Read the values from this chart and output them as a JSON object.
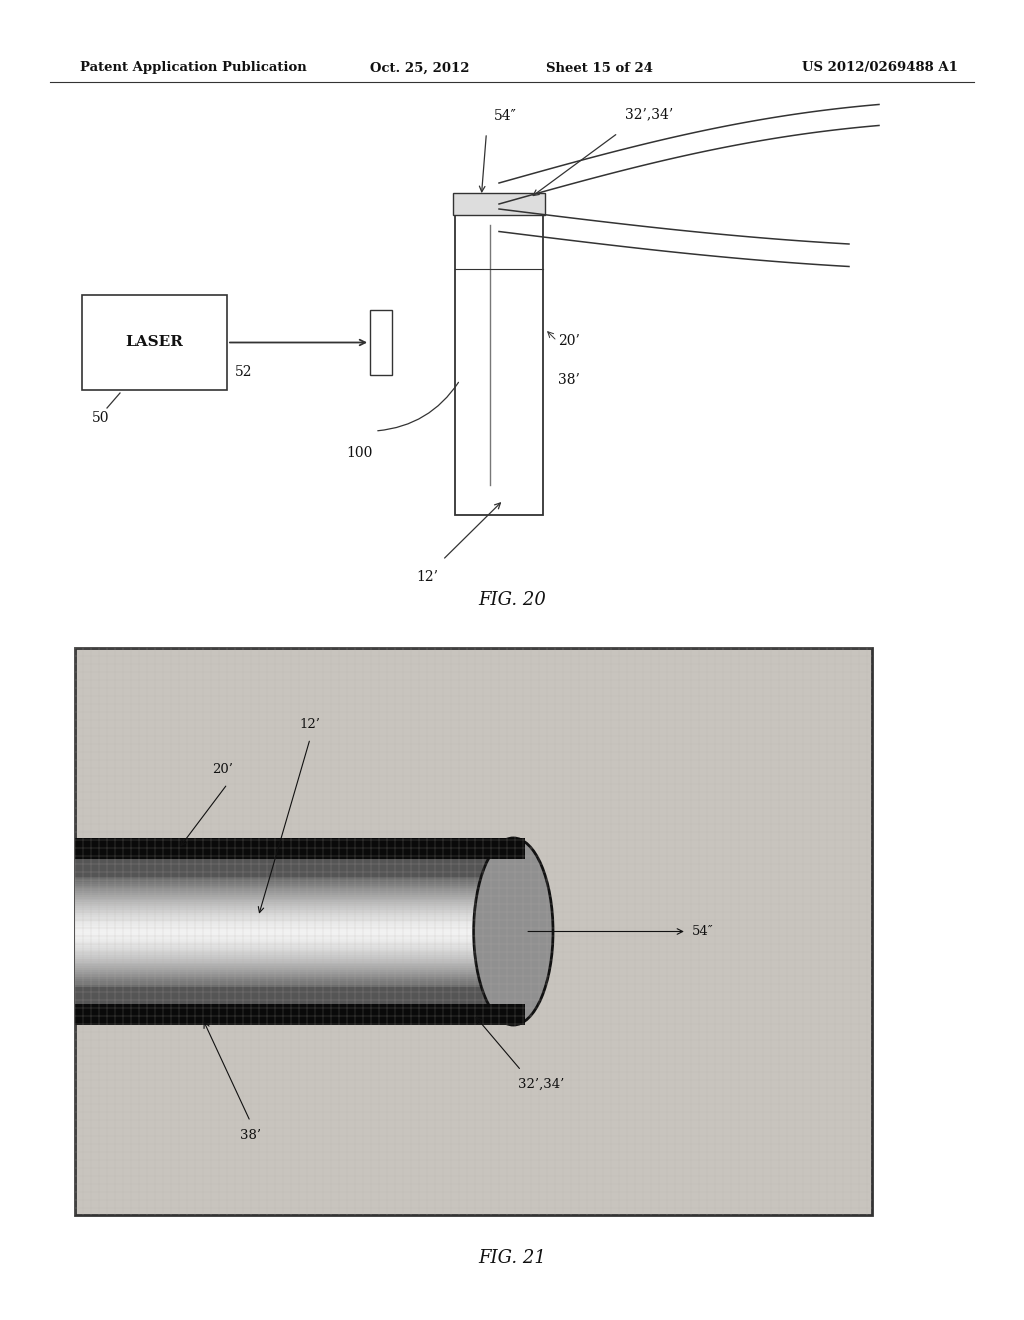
{
  "bg_color": "#ffffff",
  "header_text": "Patent Application Publication",
  "header_date": "Oct. 25, 2012",
  "header_sheet": "Sheet 15 of 24",
  "header_patent": "US 2012/0269488 A1",
  "fig20_label": "FIG. 20",
  "fig21_label": "FIG. 21"
}
